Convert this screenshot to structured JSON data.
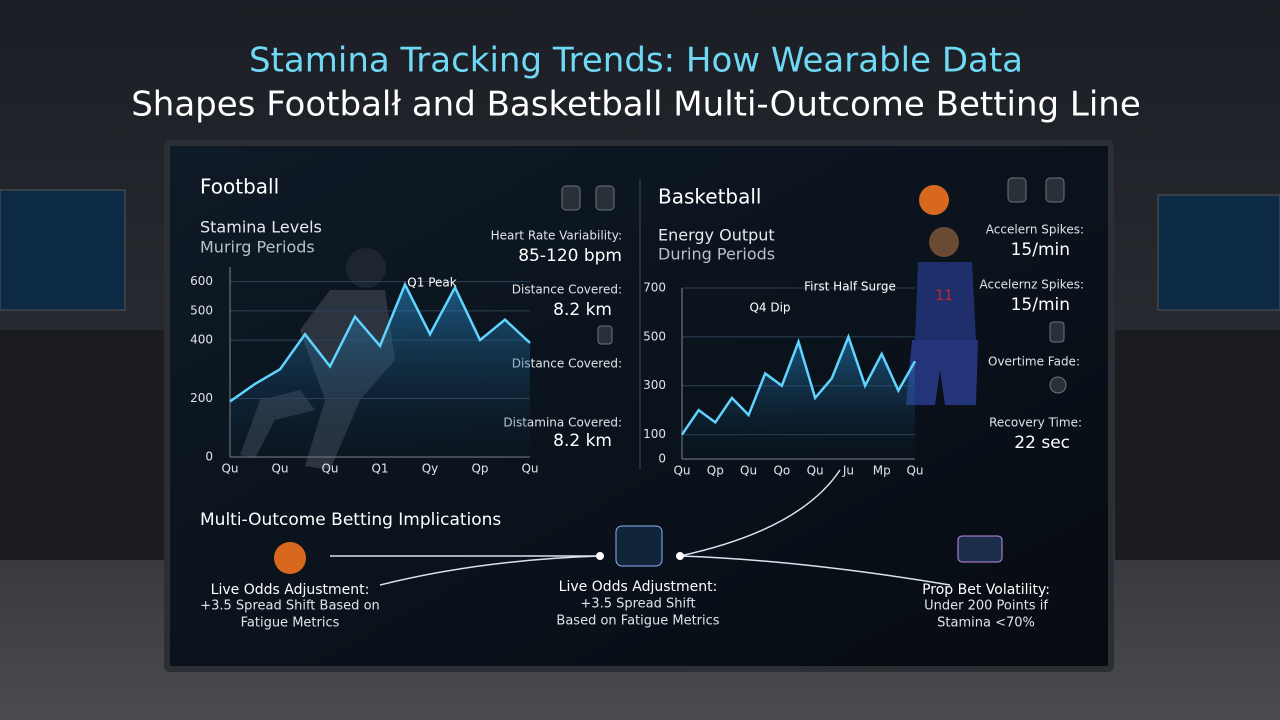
{
  "title": {
    "line1": "Stamina Tracking Trends: How Wearable Data",
    "line2": "Shapes Footbalł and Basketball Multi-Outcome Betting Line"
  },
  "football": {
    "heading": "Football",
    "subtitle1": "Stamina Levels",
    "subtitle2": "Murirg Periods",
    "stats": [
      {
        "label": "Heart Rate Variability:",
        "value": "85-120 bpm"
      },
      {
        "label": "Distance Covered:",
        "value": "8.2 km"
      },
      {
        "label": "Distance Covered:"
      },
      {
        "label": "Distamina Covered:",
        "value": "8.2 km"
      }
    ]
  },
  "basketball": {
    "heading": "Basketball",
    "subtitle1": "Energy Output",
    "subtitle2": "During Periods",
    "stats": [
      {
        "label": "Accelern Spikes:",
        "value": "15/min"
      },
      {
        "label": "Accelernz Spikes:",
        "value": "15/min"
      },
      {
        "label": "Overtime Fade:"
      },
      {
        "label": "Recovery Time:",
        "value": "22 sec"
      }
    ]
  },
  "implications": {
    "heading": "Multi-Outcome Betting Implications",
    "items": [
      {
        "title": "Live Odds Adjustment:",
        "line1": "+3.5 Spread Shift Based on",
        "line2": "Fatigue Metrics"
      },
      {
        "title": "Live Odds Adjustment:",
        "line1": "+3.5 Spread Shift",
        "line2": "Based on Fatigue Metrics"
      },
      {
        "title": "Prop Bet Volatility:",
        "line1": "Under 200 Points if",
        "line2": "Stamina <70%"
      }
    ]
  },
  "chart_data": [
    {
      "type": "line",
      "color": "#5fd4ff",
      "categories": [
        "Qu",
        null,
        "Qu",
        null,
        "Qu",
        null,
        "Q1",
        null,
        "Qy",
        null,
        "Qp",
        null,
        "Qu"
      ],
      "values": [
        190,
        250,
        300,
        420,
        310,
        480,
        380,
        590,
        420,
        580,
        400,
        470,
        390
      ],
      "ylim": [
        0,
        650
      ],
      "yticks": [
        0,
        200,
        400,
        500,
        600
      ],
      "annotations": [
        "Q1 Peak"
      ]
    },
    {
      "type": "line",
      "color": "#5fd4ff",
      "categories": [
        "Qu",
        null,
        "Qp",
        null,
        "Qu",
        null,
        "Qo",
        null,
        "Qu",
        null,
        "Ju",
        null,
        "Mp",
        null,
        "Qu"
      ],
      "values": [
        100,
        200,
        150,
        250,
        180,
        350,
        300,
        480,
        250,
        330,
        500,
        300,
        430,
        280,
        400
      ],
      "ylim": [
        0,
        700
      ],
      "yticks": [
        0,
        100,
        300,
        500,
        700
      ],
      "annotations": [
        "Q4 Dip",
        "First Half Surge"
      ]
    }
  ]
}
